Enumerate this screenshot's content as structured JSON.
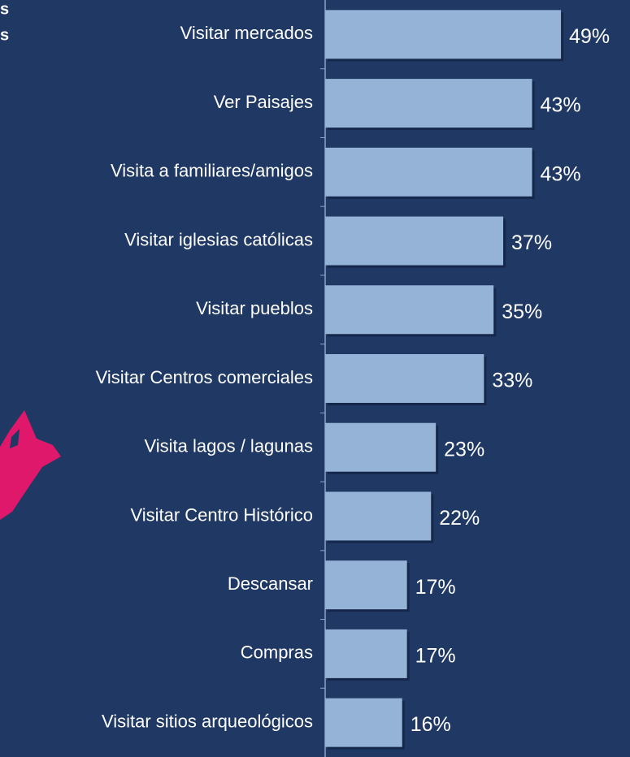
{
  "chart_data": {
    "type": "bar",
    "orientation": "horizontal",
    "annotations": [
      "s",
      "s"
    ],
    "categories": [
      "Visitar mercados",
      "Ver Paisajes",
      "Visita a familiares/amigos",
      "Visitar iglesias católicas",
      "Visitar pueblos",
      "Visitar Centros comerciales",
      "Visita lagos / lagunas",
      "Visitar Centro Histórico",
      "Descansar",
      "Compras",
      "Visitar sitios arqueológicos"
    ],
    "values": [
      49,
      43,
      43,
      37,
      35,
      33,
      23,
      22,
      17,
      17,
      16
    ],
    "value_labels": [
      "49%",
      "43%",
      "43%",
      "37%",
      "35%",
      "33%",
      "23%",
      "22%",
      "17%",
      "17%",
      "16%"
    ],
    "color": "#95b3d7"
  }
}
